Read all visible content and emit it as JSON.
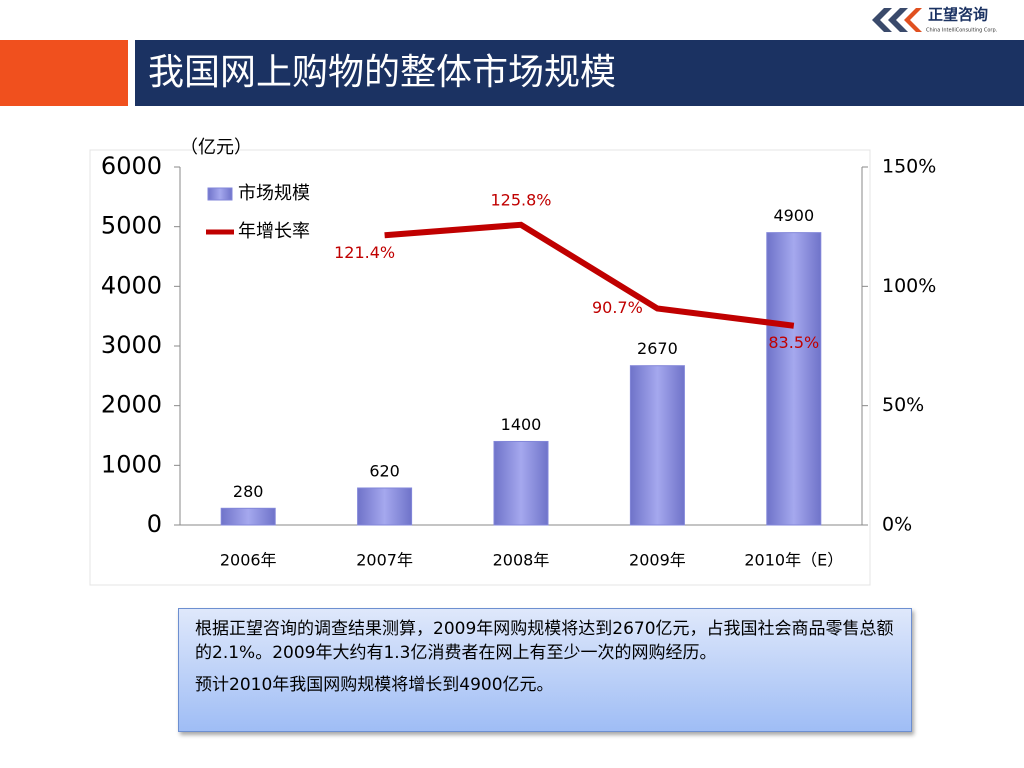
{
  "logo": {
    "name": "正望咨询",
    "subtitle": "China IntelliConsulting Corp."
  },
  "chart_data": {
    "type": "bar",
    "title": "我国网上购物的整体市场规模",
    "y_label": "（亿元）",
    "categories": [
      "2006年",
      "2007年",
      "2008年",
      "2009年",
      "2010年（E）"
    ],
    "series": [
      {
        "name": "市场规模",
        "color": "#8286d9",
        "values": [
          280,
          620,
          1400,
          2670,
          4900
        ]
      },
      {
        "name": "年增长率",
        "color": "#c00000",
        "type": "line",
        "axis": "y2",
        "values": [
          null,
          121.4,
          125.8,
          90.7,
          83.5
        ],
        "value_labels": [
          null,
          "121.4%",
          "125.8%",
          "90.7%",
          "83.5%"
        ]
      }
    ],
    "ylim": [
      0,
      6000
    ],
    "yticks": [
      0,
      1000,
      2000,
      3000,
      4000,
      5000,
      6000
    ],
    "y2lim": [
      0,
      150
    ],
    "y2ticks": [
      {
        "value": 0,
        "label": "0%"
      },
      {
        "value": 50,
        "label": "50%"
      },
      {
        "value": 100,
        "label": "100%"
      },
      {
        "value": 150,
        "label": "150%"
      }
    ],
    "grid": false,
    "legend": "top-left"
  },
  "textbox": {
    "paragraphs": [
      "根据正望咨询的调查结果测算，2009年网购规模将达到2670亿元，占我国社会商品零售总额的2.1%。2009年大约有1.3亿消费者在网上有至少一次的网购经历。",
      "预计2010年我国网购规模将增长到4900亿元。"
    ]
  }
}
